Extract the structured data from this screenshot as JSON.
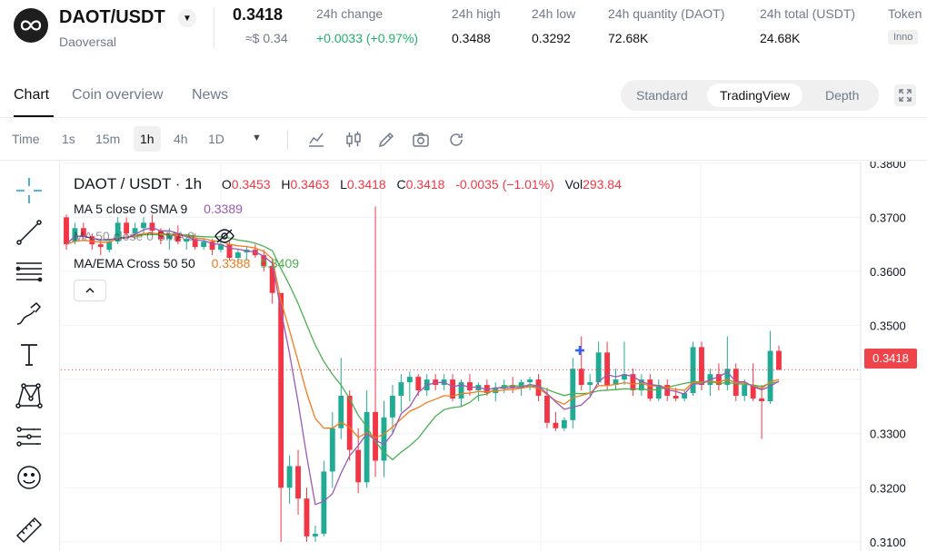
{
  "header": {
    "pair": "DAOT/USDT",
    "subname": "Daoversal",
    "price": "0.3418",
    "approx": "≈$ 0.34",
    "stats": [
      {
        "label": "24h change",
        "value": "+0.0033 (+0.97%)"
      },
      {
        "label": "24h high",
        "value": "0.3488"
      },
      {
        "label": "24h low",
        "value": "0.3292"
      },
      {
        "label": "24h quantity (DAOT)",
        "value": "72.68K"
      },
      {
        "label": "24h total (USDT)",
        "value": "24.68K"
      },
      {
        "label": "Token",
        "value": "Inno"
      }
    ]
  },
  "tabs": [
    {
      "label": "Chart"
    },
    {
      "label": "Coin overview"
    },
    {
      "label": "News"
    }
  ],
  "views": [
    {
      "label": "Standard"
    },
    {
      "label": "TradingView"
    },
    {
      "label": "Depth"
    }
  ],
  "timeframes": [
    "Time",
    "1s",
    "15m",
    "1h",
    "4h",
    "1D"
  ],
  "icons": {
    "sidebar": [
      "crosshair-icon",
      "trend-line-icon",
      "fib-lines-icon",
      "brush-icon",
      "text-icon",
      "pattern-icon",
      "forecast-icon",
      "emoji-icon",
      "ruler-icon"
    ],
    "toolbar": [
      "indicator-icon",
      "candle-type-icon",
      "draw-icon",
      "screenshot-icon",
      "reload-icon"
    ]
  },
  "legend": {
    "symbol": "DAOT / USDT · 1h",
    "o_label": "O",
    "o": "0.3453",
    "h_label": "H",
    "h": "0.3463",
    "l_label": "L",
    "l": "0.3418",
    "c_label": "C",
    "c": "0.3418",
    "change": "-0.0035 (−1.01%)",
    "vol_label": "Vol",
    "vol": "293.84",
    "ma5": "MA 5 close 0 SMA 9",
    "ma5_value": "0.3389",
    "ma50": "MA 50 close 0 SMA 9",
    "cross": "MA/EMA Cross 50 50",
    "cross_v1": "0.3388",
    "cross_v2": "0.3409"
  },
  "colors": {
    "up": "#22ab94",
    "down": "#f23645",
    "ma5": "#9b59b6",
    "ma_orange": "#f27b1f",
    "ma_green": "#4caf50"
  },
  "chart_data": {
    "type": "candlestick",
    "timeframe": "1h",
    "y_ticks": [
      "0.3800",
      "0.3700",
      "0.3600",
      "0.3500",
      "0.3418",
      "0.3300",
      "0.3200",
      "0.3100"
    ],
    "ylim": [
      0.3083,
      0.3803
    ],
    "last_price": "0.3418",
    "candles": [
      [
        0.37,
        0.3705,
        0.364,
        0.365
      ],
      [
        0.3655,
        0.369,
        0.365,
        0.368
      ],
      [
        0.368,
        0.369,
        0.366,
        0.3665
      ],
      [
        0.3665,
        0.367,
        0.364,
        0.365
      ],
      [
        0.365,
        0.366,
        0.363,
        0.3645
      ],
      [
        0.364,
        0.366,
        0.3635,
        0.3655
      ],
      [
        0.3655,
        0.37,
        0.365,
        0.369
      ],
      [
        0.369,
        0.37,
        0.366,
        0.367
      ],
      [
        0.367,
        0.369,
        0.366,
        0.368
      ],
      [
        0.368,
        0.37,
        0.367,
        0.369
      ],
      [
        0.369,
        0.3705,
        0.367,
        0.3675
      ],
      [
        0.3675,
        0.368,
        0.365,
        0.366
      ],
      [
        0.366,
        0.368,
        0.364,
        0.367
      ],
      [
        0.367,
        0.3685,
        0.365,
        0.3655
      ],
      [
        0.3655,
        0.3665,
        0.364,
        0.366
      ],
      [
        0.366,
        0.367,
        0.364,
        0.3645
      ],
      [
        0.3645,
        0.366,
        0.364,
        0.3655
      ],
      [
        0.3655,
        0.366,
        0.363,
        0.364
      ],
      [
        0.364,
        0.366,
        0.3635,
        0.365
      ],
      [
        0.365,
        0.3655,
        0.362,
        0.3625
      ],
      [
        0.3625,
        0.364,
        0.3615,
        0.3635
      ],
      [
        0.3635,
        0.3645,
        0.362,
        0.364
      ],
      [
        0.364,
        0.365,
        0.3625,
        0.363
      ],
      [
        0.363,
        0.364,
        0.36,
        0.361
      ],
      [
        0.361,
        0.362,
        0.354,
        0.356
      ],
      [
        0.356,
        0.356,
        0.31,
        0.32
      ],
      [
        0.32,
        0.326,
        0.317,
        0.324
      ],
      [
        0.324,
        0.327,
        0.315,
        0.318
      ],
      [
        0.318,
        0.32,
        0.31,
        0.311
      ],
      [
        0.311,
        0.313,
        0.31,
        0.3115
      ],
      [
        0.3115,
        0.325,
        0.311,
        0.323
      ],
      [
        0.323,
        0.334,
        0.32,
        0.331
      ],
      [
        0.331,
        0.344,
        0.329,
        0.337
      ],
      [
        0.337,
        0.338,
        0.325,
        0.327
      ],
      [
        0.327,
        0.331,
        0.319,
        0.321
      ],
      [
        0.321,
        0.338,
        0.32,
        0.334
      ],
      [
        0.334,
        0.372,
        0.322,
        0.325
      ],
      [
        0.325,
        0.336,
        0.322,
        0.333
      ],
      [
        0.333,
        0.339,
        0.33,
        0.337
      ],
      [
        0.337,
        0.341,
        0.334,
        0.3395
      ],
      [
        0.3395,
        0.3415,
        0.336,
        0.3405
      ],
      [
        0.3405,
        0.341,
        0.337,
        0.338
      ],
      [
        0.338,
        0.341,
        0.337,
        0.34
      ],
      [
        0.34,
        0.341,
        0.338,
        0.339
      ],
      [
        0.339,
        0.341,
        0.338,
        0.34
      ],
      [
        0.34,
        0.341,
        0.336,
        0.3365
      ],
      [
        0.3365,
        0.34,
        0.335,
        0.3395
      ],
      [
        0.3395,
        0.341,
        0.337,
        0.338
      ],
      [
        0.338,
        0.3395,
        0.336,
        0.339
      ],
      [
        0.339,
        0.34,
        0.337,
        0.3375
      ],
      [
        0.3375,
        0.3395,
        0.336,
        0.3385
      ],
      [
        0.3385,
        0.34,
        0.3375,
        0.339
      ],
      [
        0.339,
        0.3405,
        0.3375,
        0.3385
      ],
      [
        0.3385,
        0.34,
        0.337,
        0.3395
      ],
      [
        0.3395,
        0.3405,
        0.338,
        0.34
      ],
      [
        0.34,
        0.341,
        0.336,
        0.337
      ],
      [
        0.337,
        0.3385,
        0.331,
        0.332
      ],
      [
        0.332,
        0.334,
        0.3305,
        0.331
      ],
      [
        0.331,
        0.333,
        0.3305,
        0.3325
      ],
      [
        0.3325,
        0.344,
        0.331,
        0.342
      ],
      [
        0.342,
        0.348,
        0.338,
        0.339
      ],
      [
        0.339,
        0.341,
        0.337,
        0.3395
      ],
      [
        0.3395,
        0.347,
        0.339,
        0.345
      ],
      [
        0.345,
        0.347,
        0.338,
        0.339
      ],
      [
        0.339,
        0.342,
        0.338,
        0.34
      ],
      [
        0.34,
        0.347,
        0.339,
        0.341
      ],
      [
        0.341,
        0.342,
        0.337,
        0.338
      ],
      [
        0.338,
        0.341,
        0.337,
        0.34
      ],
      [
        0.34,
        0.341,
        0.336,
        0.3365
      ],
      [
        0.3365,
        0.34,
        0.336,
        0.339
      ],
      [
        0.339,
        0.34,
        0.336,
        0.337
      ],
      [
        0.337,
        0.3385,
        0.336,
        0.3365
      ],
      [
        0.3365,
        0.338,
        0.336,
        0.3375
      ],
      [
        0.3375,
        0.347,
        0.337,
        0.346
      ],
      [
        0.346,
        0.347,
        0.338,
        0.339
      ],
      [
        0.339,
        0.342,
        0.337,
        0.341
      ],
      [
        0.341,
        0.343,
        0.338,
        0.339
      ],
      [
        0.339,
        0.348,
        0.338,
        0.342
      ],
      [
        0.342,
        0.343,
        0.336,
        0.337
      ],
      [
        0.337,
        0.34,
        0.336,
        0.339
      ],
      [
        0.339,
        0.343,
        0.336,
        0.3365
      ],
      [
        0.3365,
        0.339,
        0.329,
        0.336
      ],
      [
        0.336,
        0.349,
        0.3355,
        0.3453
      ],
      [
        0.3453,
        0.3463,
        0.3418,
        0.3418
      ]
    ]
  }
}
